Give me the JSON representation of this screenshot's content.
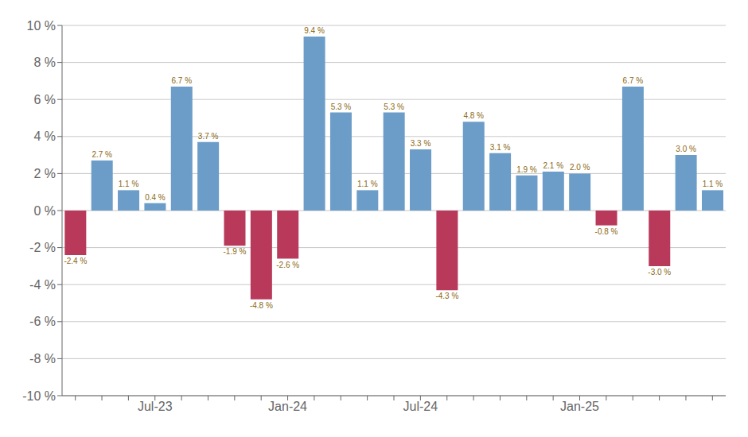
{
  "chart_data": {
    "type": "bar",
    "categories": [
      null,
      null,
      null,
      "Jul-23",
      null,
      null,
      null,
      null,
      "Jan-24",
      null,
      null,
      null,
      null,
      "Jul-24",
      null,
      null,
      null,
      null,
      null,
      "Jan-25",
      null,
      null,
      null,
      null,
      null
    ],
    "values": [
      -2.4,
      2.7,
      1.1,
      0.4,
      6.7,
      3.7,
      -1.9,
      -4.8,
      -2.6,
      9.4,
      5.3,
      1.1,
      5.3,
      3.3,
      -4.3,
      4.8,
      3.1,
      1.9,
      2.1,
      2.0,
      -0.8,
      6.7,
      -3.0,
      3.0,
      1.1
    ],
    "value_labels": [
      "-2.4 %",
      "2.7 %",
      "1.1 %",
      "0.4 %",
      "6.7 %",
      "3.7 %",
      "-1.9 %",
      "-4.8 %",
      "-2.6 %",
      "9.4 %",
      "5.3 %",
      "1.1 %",
      "5.3 %",
      "3.3 %",
      "-4.3 %",
      "4.8 %",
      "3.1 %",
      "1.9 %",
      "2.1 %",
      "2.0 %",
      "-0.8 %",
      "6.7 %",
      "-3.0 %",
      "3.0 %",
      "1.1 %"
    ],
    "colors": [
      "#B8395A",
      "#6B9DC8",
      "#6B9DC8",
      "#6B9DC8",
      "#6B9DC8",
      "#6B9DC8",
      "#B8395A",
      "#B8395A",
      "#B8395A",
      "#6B9DC8",
      "#6B9DC8",
      "#6B9DC8",
      "#6B9DC8",
      "#6B9DC8",
      "#B8395A",
      "#6B9DC8",
      "#6B9DC8",
      "#6B9DC8",
      "#6B9DC8",
      "#6B9DC8",
      "#B8395A",
      "#6B9DC8",
      "#B8395A",
      "#6B9DC8",
      "#6B9DC8"
    ],
    "ylim": [
      -10,
      10
    ],
    "yticks": [
      {
        "value": -10,
        "label": "-10 %"
      },
      {
        "value": -8,
        "label": "-8 %"
      },
      {
        "value": -6,
        "label": "-6 %"
      },
      {
        "value": -4,
        "label": "-4 %"
      },
      {
        "value": -2,
        "label": "-2 %"
      },
      {
        "value": 0,
        "label": "0 %"
      },
      {
        "value": 2,
        "label": "2 %"
      },
      {
        "value": 4,
        "label": "4 %"
      },
      {
        "value": 6,
        "label": "6 %"
      },
      {
        "value": 8,
        "label": "8 %"
      },
      {
        "value": 10,
        "label": "10 %"
      }
    ],
    "grid": true,
    "data_labels": true
  }
}
